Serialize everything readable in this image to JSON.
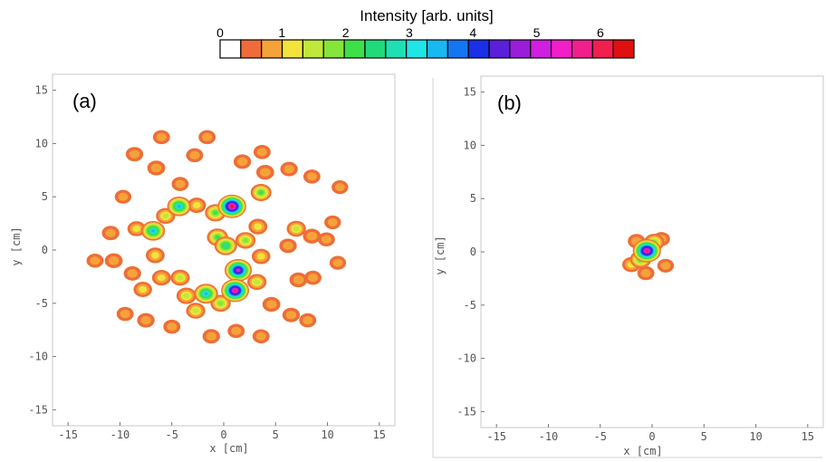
{
  "colorbar": {
    "title": "Intensity [arb. units]",
    "ticks": [
      "0",
      "1",
      "2",
      "3",
      "4",
      "5",
      "6"
    ],
    "range": [
      0,
      6.5
    ],
    "colors": [
      "#ffffff",
      "#ef6c3a",
      "#f5a23a",
      "#f2e43a",
      "#bfe83a",
      "#86e53a",
      "#3ee048",
      "#22d97a",
      "#1ee0b4",
      "#1ee6e6",
      "#18b8f0",
      "#1476f0",
      "#1a2fe6",
      "#5a1fd9",
      "#9a1ed9",
      "#cf1fe0",
      "#f01fc8",
      "#f01f8c",
      "#f01f4e",
      "#e01010"
    ]
  },
  "chart_data": [
    {
      "type": "heatmap",
      "panel_label": "(a)",
      "xlabel": "x [cm]",
      "ylabel": "y [cm]",
      "xlim": [
        -16.5,
        16.5
      ],
      "ylim": [
        -16.5,
        16.5
      ],
      "xticks": [
        "-15",
        "-10",
        "-5",
        "0",
        "5",
        "10",
        "15"
      ],
      "yticks": [
        "15",
        "10",
        "5",
        "0",
        "-5",
        "-10",
        "-15"
      ],
      "blobs": [
        {
          "x": -8.4,
          "y": 2.0,
          "peak": 0.9
        },
        {
          "x": -6.8,
          "y": 1.8,
          "peak": 3.2
        },
        {
          "x": -6.6,
          "y": -0.5,
          "peak": 1.1
        },
        {
          "x": -5.6,
          "y": 3.2,
          "peak": 1.2
        },
        {
          "x": -4.3,
          "y": 4.1,
          "peak": 3.2
        },
        {
          "x": -2.6,
          "y": 4.2,
          "peak": 1.0
        },
        {
          "x": -6.5,
          "y": 7.7,
          "peak": 0.8
        },
        {
          "x": -8.6,
          "y": 9.0,
          "peak": 0.7
        },
        {
          "x": -6.0,
          "y": 10.6,
          "peak": 0.6
        },
        {
          "x": -10.9,
          "y": 1.6,
          "peak": 0.7
        },
        {
          "x": -10.6,
          "y": -1.0,
          "peak": 0.8
        },
        {
          "x": -12.4,
          "y": -1.0,
          "peak": 0.6
        },
        {
          "x": -8.8,
          "y": -2.2,
          "peak": 0.7
        },
        {
          "x": -7.8,
          "y": -3.7,
          "peak": 1.0
        },
        {
          "x": -6.0,
          "y": -2.6,
          "peak": 1.1
        },
        {
          "x": -4.2,
          "y": -2.6,
          "peak": 1.2
        },
        {
          "x": -3.6,
          "y": -4.3,
          "peak": 1.4
        },
        {
          "x": -2.7,
          "y": -5.7,
          "peak": 1.2
        },
        {
          "x": -1.7,
          "y": -4.1,
          "peak": 3.3
        },
        {
          "x": -0.3,
          "y": -5.0,
          "peak": 1.6
        },
        {
          "x": 0.8,
          "y": 4.1,
          "peak": 6.2
        },
        {
          "x": -0.8,
          "y": 3.5,
          "peak": 1.8
        },
        {
          "x": 1.1,
          "y": -3.8,
          "peak": 5.8
        },
        {
          "x": 1.4,
          "y": -1.9,
          "peak": 5.3
        },
        {
          "x": -0.6,
          "y": 1.2,
          "peak": 1.9
        },
        {
          "x": 0.2,
          "y": 0.4,
          "peak": 2.6
        },
        {
          "x": 2.1,
          "y": 0.9,
          "peak": 1.5
        },
        {
          "x": 3.3,
          "y": 2.2,
          "peak": 1.1
        },
        {
          "x": 3.6,
          "y": -0.6,
          "peak": 1.0
        },
        {
          "x": 3.2,
          "y": -3.0,
          "peak": 1.2
        },
        {
          "x": 4.6,
          "y": -5.1,
          "peak": 0.8
        },
        {
          "x": 3.6,
          "y": 5.4,
          "peak": 1.8
        },
        {
          "x": 4.0,
          "y": 7.3,
          "peak": 0.8
        },
        {
          "x": 1.8,
          "y": 8.3,
          "peak": 0.7
        },
        {
          "x": -1.6,
          "y": 10.6,
          "peak": 0.6
        },
        {
          "x": -2.8,
          "y": 8.9,
          "peak": 0.6
        },
        {
          "x": 3.7,
          "y": 9.2,
          "peak": 0.6
        },
        {
          "x": 6.3,
          "y": 7.6,
          "peak": 0.7
        },
        {
          "x": 8.5,
          "y": 6.9,
          "peak": 0.6
        },
        {
          "x": 7.0,
          "y": 2.0,
          "peak": 1.2
        },
        {
          "x": 8.5,
          "y": 1.3,
          "peak": 0.8
        },
        {
          "x": 6.2,
          "y": 0.4,
          "peak": 0.7
        },
        {
          "x": 7.2,
          "y": -2.8,
          "peak": 0.8
        },
        {
          "x": 8.6,
          "y": -2.6,
          "peak": 0.6
        },
        {
          "x": 6.5,
          "y": -6.1,
          "peak": 0.7
        },
        {
          "x": 8.1,
          "y": -6.6,
          "peak": 0.6
        },
        {
          "x": 9.9,
          "y": 1.0,
          "peak": 0.6
        },
        {
          "x": 11.0,
          "y": -1.2,
          "peak": 0.5
        },
        {
          "x": -9.5,
          "y": -6.0,
          "peak": 0.6
        },
        {
          "x": -7.5,
          "y": -6.6,
          "peak": 0.7
        },
        {
          "x": -5.0,
          "y": -7.2,
          "peak": 0.6
        },
        {
          "x": -1.2,
          "y": -8.1,
          "peak": 0.7
        },
        {
          "x": 1.2,
          "y": -7.6,
          "peak": 0.6
        },
        {
          "x": 3.6,
          "y": -8.1,
          "peak": 0.6
        },
        {
          "x": -4.2,
          "y": 6.2,
          "peak": 0.6
        },
        {
          "x": -9.7,
          "y": 5.0,
          "peak": 0.5
        },
        {
          "x": 11.2,
          "y": 5.9,
          "peak": 0.5
        },
        {
          "x": 10.5,
          "y": 2.6,
          "peak": 0.5
        }
      ]
    },
    {
      "type": "heatmap",
      "panel_label": "(b)",
      "xlabel": "x [cm]",
      "ylabel": "y [cm]",
      "xlim": [
        -16.5,
        16.5
      ],
      "ylim": [
        -16.5,
        16.5
      ],
      "xticks": [
        "-15",
        "-10",
        "-5",
        "0",
        "5",
        "10",
        "15"
      ],
      "yticks": [
        "15",
        "10",
        "5",
        "0",
        "-5",
        "-10",
        "-15"
      ],
      "blobs": [
        {
          "x": -0.5,
          "y": 0.1,
          "peak": 6.0
        },
        {
          "x": -1.1,
          "y": -0.7,
          "peak": 2.0
        },
        {
          "x": 0.2,
          "y": 0.9,
          "peak": 1.6
        },
        {
          "x": -2.0,
          "y": -1.2,
          "peak": 0.9
        },
        {
          "x": -1.5,
          "y": 1.0,
          "peak": 0.7
        },
        {
          "x": 0.9,
          "y": 1.2,
          "peak": 0.6
        },
        {
          "x": 1.3,
          "y": -1.3,
          "peak": 0.5
        },
        {
          "x": -0.6,
          "y": -2.0,
          "peak": 0.6
        }
      ]
    }
  ]
}
